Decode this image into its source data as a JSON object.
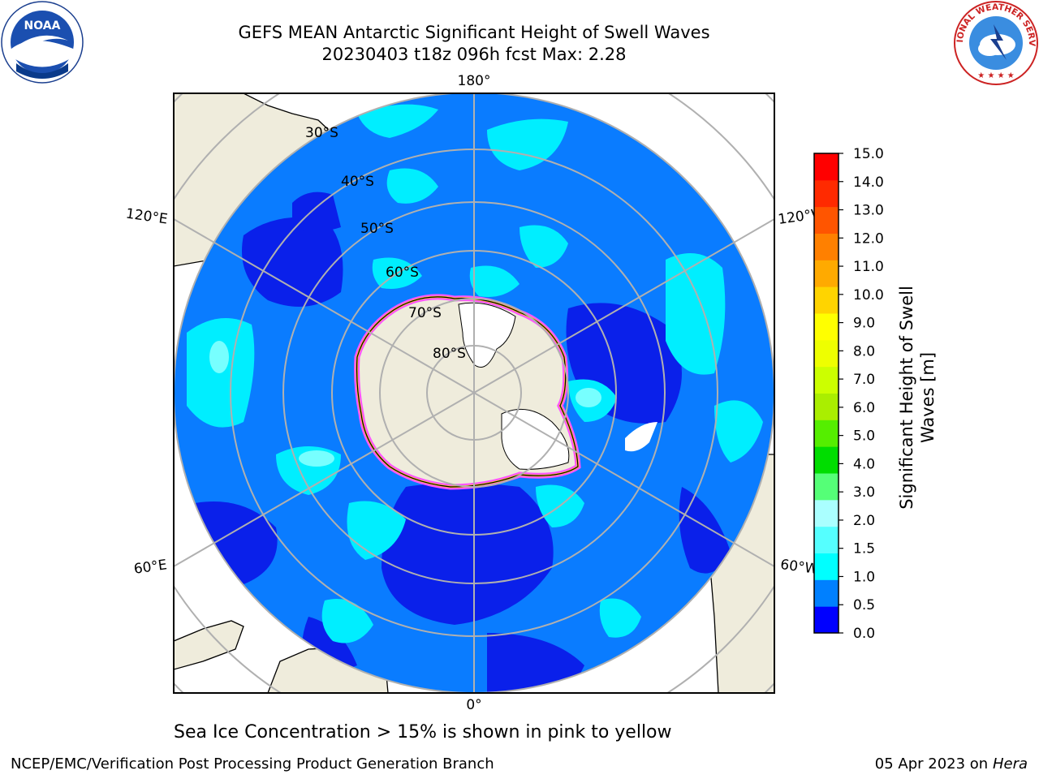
{
  "title": {
    "line1": "GEFS MEAN Antarctic Significant Height of Swell Waves",
    "line2": "20230403 t18z 096h fcst   Max: 2.28"
  },
  "map": {
    "projection": "south-polar-stereographic",
    "meridian_labels": {
      "top": "180°",
      "bottom": "0°",
      "upper_left": "120°E",
      "upper_right": "120°W",
      "lower_left": "60°E",
      "lower_right": "60°W"
    },
    "parallel_labels": [
      "30°S",
      "40°S",
      "50°S",
      "60°S",
      "70°S",
      "80°S"
    ],
    "colors": {
      "land": "#efecdc",
      "ice_free_land": "#ffffff",
      "grid": "#b0b0b0",
      "sea_ice_edge_pink": "#ff55ff",
      "sea_ice_edge_yellow": "#ffd700"
    }
  },
  "colorbar": {
    "label": "Significant Height of Swell Waves [m]",
    "label_line1": "Significant Height of Swell",
    "label_line2": "Waves [m]",
    "ticks": [
      "0.0",
      "0.5",
      "1.0",
      "1.5",
      "2.0",
      "3.0",
      "4.0",
      "5.0",
      "6.0",
      "7.0",
      "8.0",
      "9.0",
      "10.0",
      "11.0",
      "12.0",
      "13.0",
      "14.0",
      "15.0"
    ],
    "colors": [
      "#0000ff",
      "#0080ff",
      "#00ffff",
      "#55ffff",
      "#aaffff",
      "#55ff77",
      "#00dd00",
      "#55ee00",
      "#aaee00",
      "#ccff00",
      "#eeff00",
      "#ffff00",
      "#ffd400",
      "#ffaa00",
      "#ff8000",
      "#ff5500",
      "#ff2a00",
      "#ff0000"
    ]
  },
  "footnote": "Sea Ice Concentration > 15% is shown in pink to yellow",
  "credit": "NCEP/EMC/Verification Post Processing Product Generation Branch",
  "date": {
    "text": "05 Apr 2023 on",
    "machine": "Hera"
  },
  "logos": {
    "left": "NOAA",
    "right": "NATIONAL WEATHER SERVICE"
  }
}
